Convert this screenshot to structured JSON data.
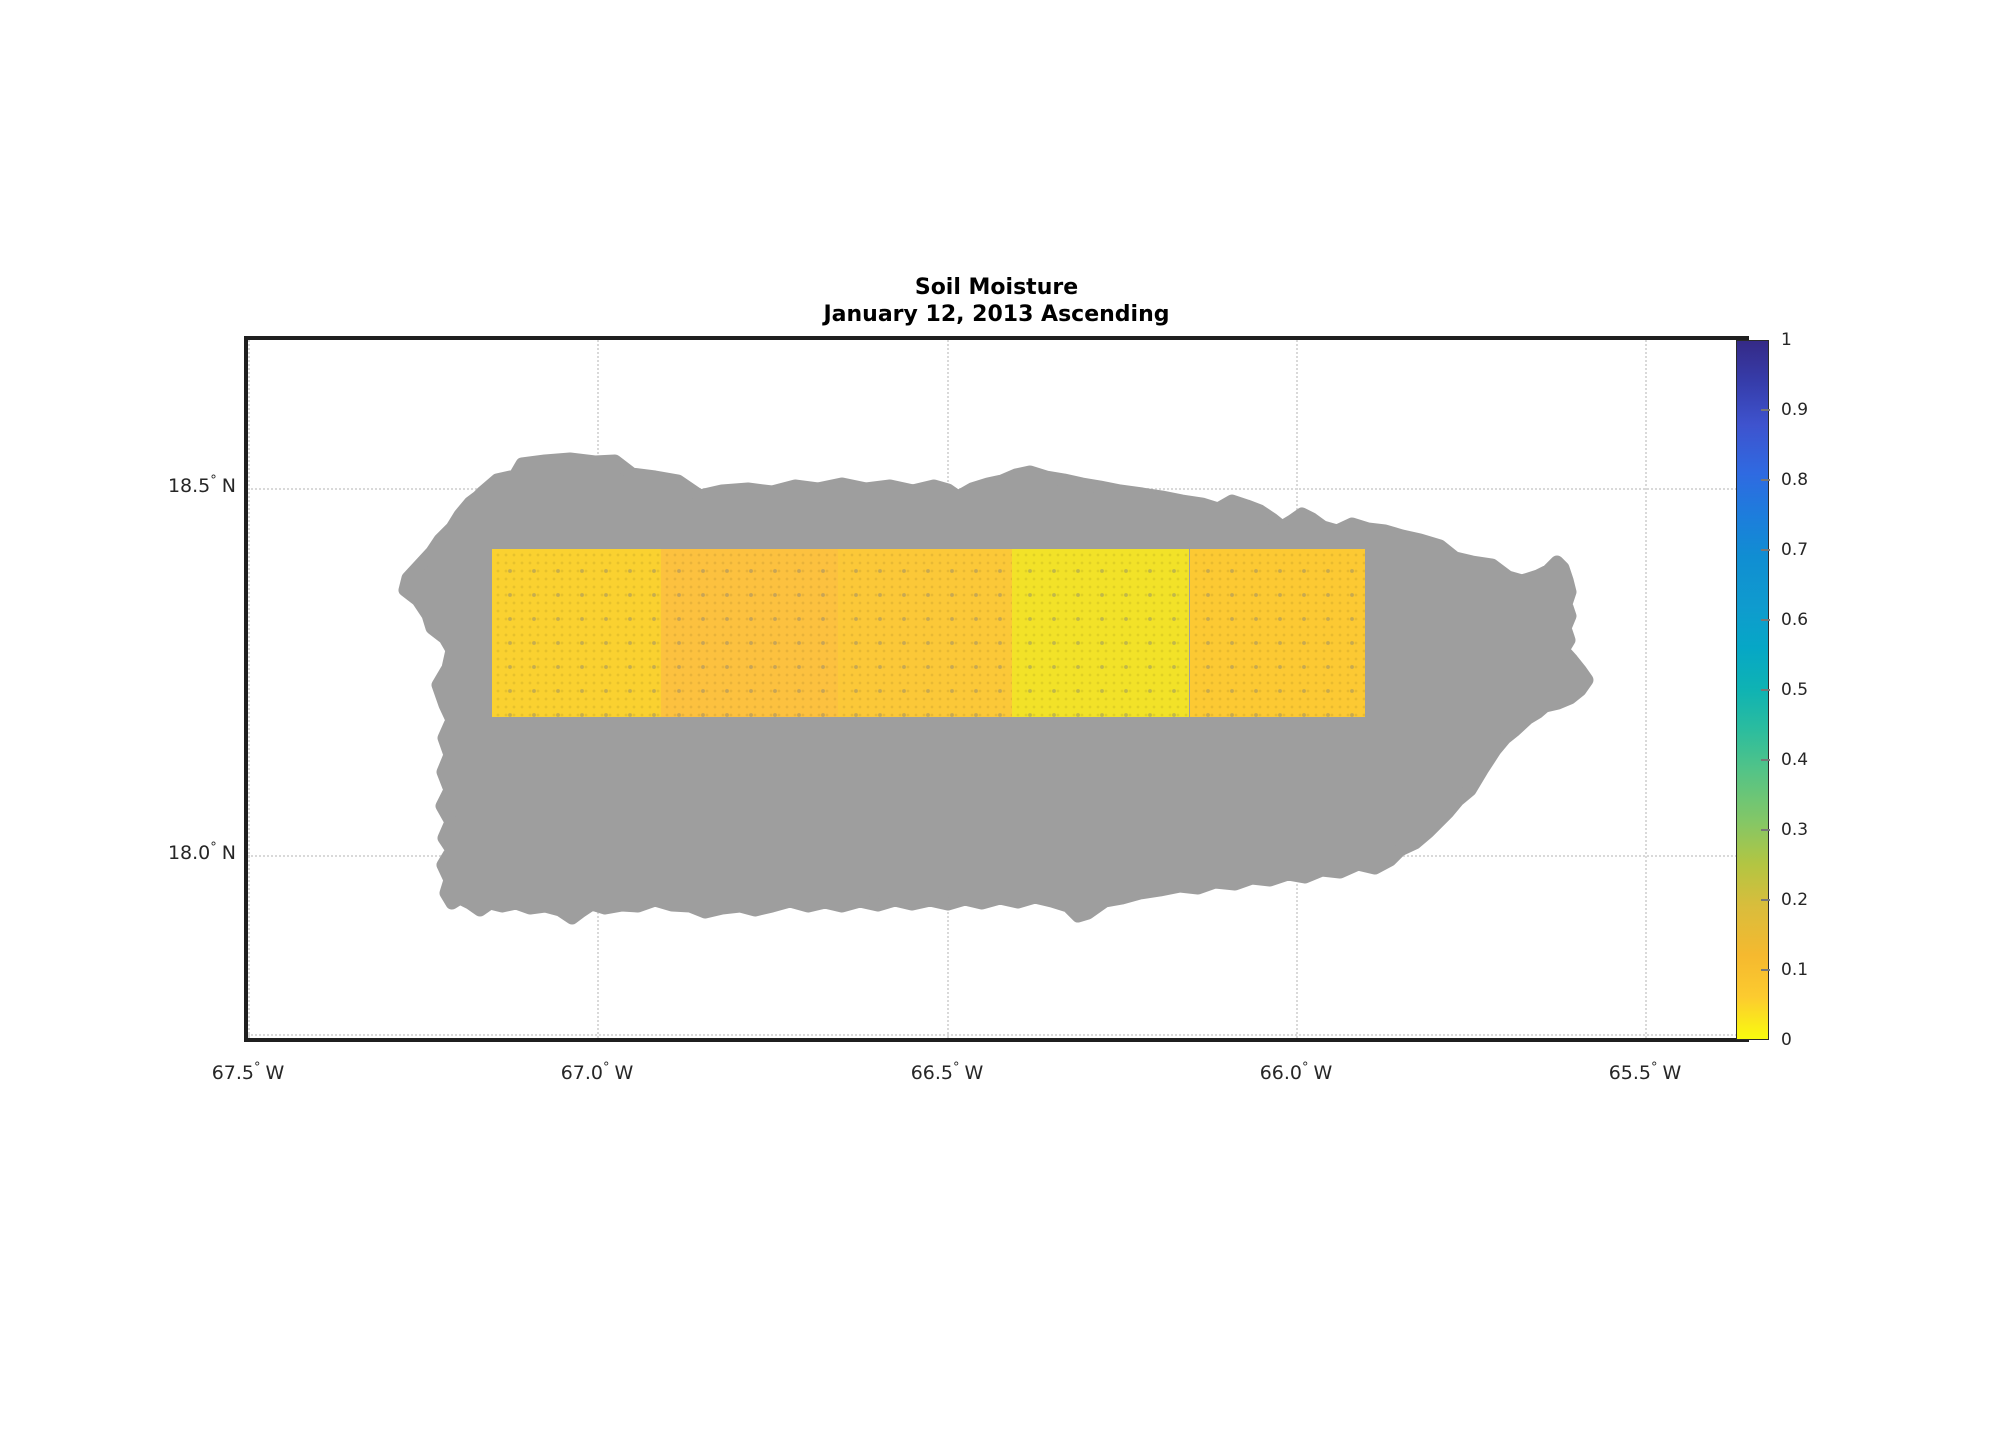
{
  "glyphs": {
    "degree": "°"
  },
  "figure": {
    "title": "Soil Moisture",
    "subtitle": "January 12, 2013 Ascending",
    "background": "#FFFFFF"
  },
  "chart_data": {
    "type": "heatmap",
    "title": "Soil Moisture",
    "subtitle": "January 12, 2013 Ascending",
    "region": "Puerto Rico",
    "land_color": "#9E9E9E",
    "grid": true,
    "x_axis": {
      "unit": "degrees west longitude",
      "range_deg_w": [
        67.5,
        65.36
      ],
      "ticks": [
        {
          "value": 67.5,
          "num": "67.5",
          "hemi": "W"
        },
        {
          "value": 67.0,
          "num": "67.0",
          "hemi": "W"
        },
        {
          "value": 66.5,
          "num": "66.5",
          "hemi": "W"
        },
        {
          "value": 66.0,
          "num": "66.0",
          "hemi": "W"
        },
        {
          "value": 65.5,
          "num": "65.5",
          "hemi": "W"
        }
      ]
    },
    "y_axis": {
      "unit": "degrees north latitude",
      "range_deg_n": [
        17.75,
        18.7
      ],
      "ticks": [
        {
          "value": 18.5,
          "num": "18.5",
          "hemi": "N"
        },
        {
          "value": 18.0,
          "num": "18.0",
          "hemi": "N"
        }
      ]
    },
    "colorbar": {
      "min": 0,
      "max": 1,
      "tick_values": [
        1,
        0.9,
        0.8,
        0.7,
        0.6,
        0.5,
        0.4,
        0.3,
        0.2,
        0.1,
        0
      ],
      "tick_labels": [
        "1",
        "0.9",
        "0.8",
        "0.7",
        "0.6",
        "0.5",
        "0.4",
        "0.3",
        "0.2",
        "0.1",
        "0"
      ],
      "colormap": "parula-reversed",
      "stops_bottom_to_top": [
        {
          "at": 0.0,
          "color": "#F9FB0E"
        },
        {
          "at": 0.06,
          "color": "#FCCB2F"
        },
        {
          "at": 0.12,
          "color": "#F5B92F"
        },
        {
          "at": 0.19,
          "color": "#D9BD3C"
        },
        {
          "at": 0.25,
          "color": "#B3C542"
        },
        {
          "at": 0.31,
          "color": "#85C765"
        },
        {
          "at": 0.38,
          "color": "#56C485"
        },
        {
          "at": 0.44,
          "color": "#2DBD9D"
        },
        {
          "at": 0.5,
          "color": "#0FB3B3"
        },
        {
          "at": 0.56,
          "color": "#06A7C6"
        },
        {
          "at": 0.62,
          "color": "#0F9BCE"
        },
        {
          "at": 0.69,
          "color": "#108ED2"
        },
        {
          "at": 0.75,
          "color": "#1D7DDC"
        },
        {
          "at": 0.81,
          "color": "#2F6AE1"
        },
        {
          "at": 0.88,
          "color": "#3E53CE"
        },
        {
          "at": 0.94,
          "color": "#363DAB"
        },
        {
          "at": 1.0,
          "color": "#352A87"
        }
      ]
    },
    "swath": {
      "lat_n_range": [
        18.188,
        18.417
      ],
      "segments": [
        {
          "lon_w_from": 67.151,
          "lon_w_to": 66.909,
          "soil_moisture_est": 0.08,
          "color": "#FAD130"
        },
        {
          "lon_w_from": 66.909,
          "lon_w_to": 66.655,
          "soil_moisture_est": 0.13,
          "color": "#FCC13F"
        },
        {
          "lon_w_from": 66.655,
          "lon_w_to": 66.406,
          "soil_moisture_est": 0.1,
          "color": "#FBC838"
        },
        {
          "lon_w_from": 66.406,
          "lon_w_to": 66.152,
          "soil_moisture_est": 0.04,
          "color": "#F2E228"
        },
        {
          "lon_w_from": 66.152,
          "lon_w_to": 65.901,
          "soil_moisture_est": 0.09,
          "color": "#FCC933"
        }
      ]
    }
  }
}
